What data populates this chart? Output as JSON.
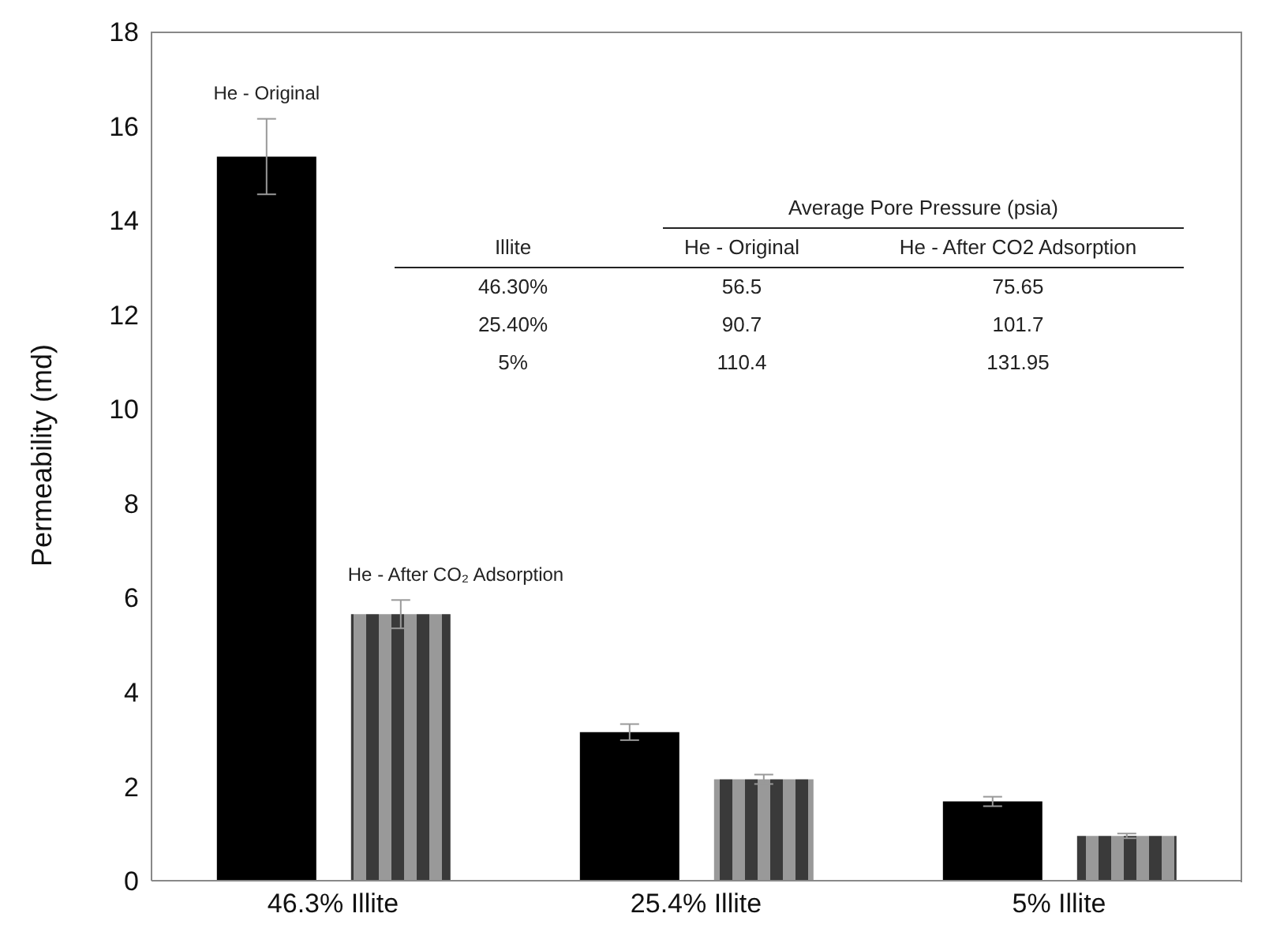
{
  "chart_data": {
    "type": "bar",
    "ylabel": "Permeability (md)",
    "categories": [
      "46.3% Illite",
      "25.4% Illite",
      "5% Illite"
    ],
    "series": [
      {
        "name": "He - Original",
        "color": "#000000",
        "values": [
          15.35,
          3.15,
          1.68
        ],
        "errors": [
          0.8,
          0.17,
          0.1
        ]
      },
      {
        "name": "He - After CO₂ Adsorption",
        "color": "#999999",
        "values": [
          5.65,
          2.15,
          0.95
        ],
        "errors": [
          0.3,
          0.1,
          0.05
        ]
      }
    ],
    "ylim": [
      0,
      18
    ],
    "yticks": [
      0,
      2,
      4,
      6,
      8,
      10,
      12,
      14,
      16,
      18
    ],
    "grid": false,
    "legend": false,
    "annotations": [
      "Average Pore Pressure (psia)",
      "Illite",
      "He - Original",
      "He - After CO2 Adsorption",
      "46.30%",
      "56.5",
      "75.65",
      "25.40%",
      "90.7",
      "101.7",
      "5%",
      "110.4",
      "131.95"
    ]
  }
}
